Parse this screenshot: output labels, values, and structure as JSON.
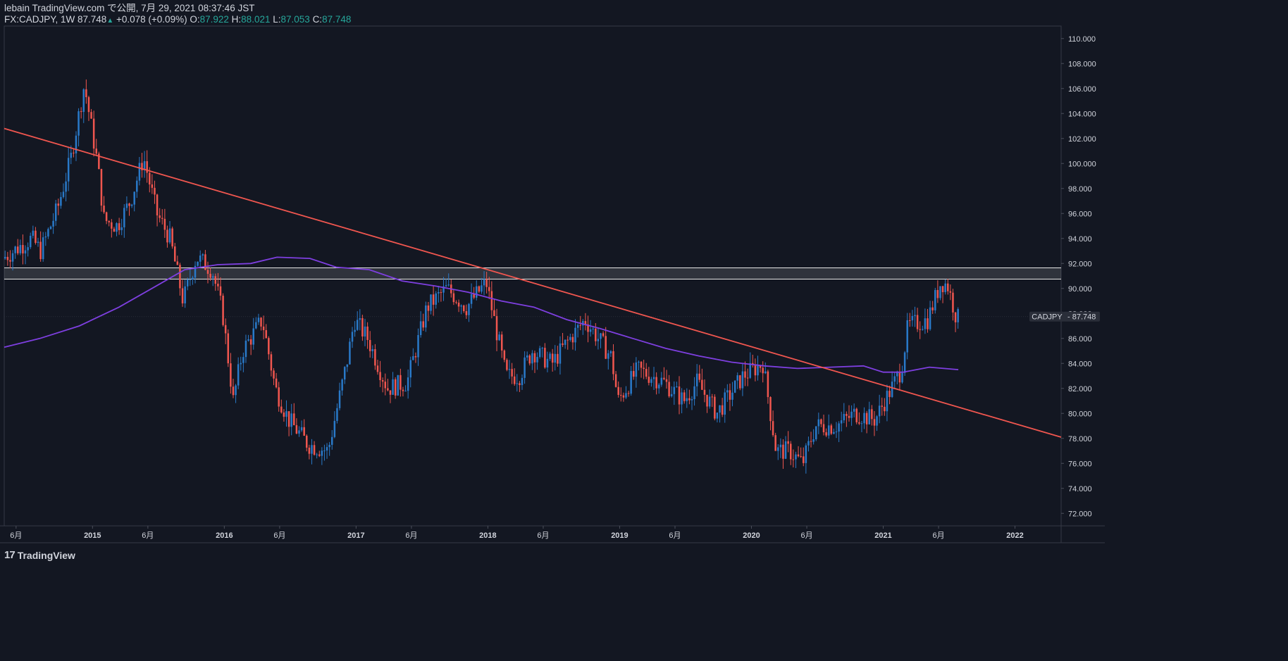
{
  "header": {
    "published": "lebain TradingView.com で公開, 7月 29, 2021 08:37:46 JST",
    "symbol": "FX:CADJPY, 1W 87.748",
    "change_arrow": "▲",
    "change": "+0.078 (+0.09%)",
    "o_label": "O:",
    "o_value": "87.922",
    "h_label": "H:",
    "h_value": "88.021",
    "l_label": "L:",
    "l_value": "87.053",
    "c_label": "C:",
    "c_value": "87.748"
  },
  "footer": {
    "logo_mark": "17",
    "logo_text": "TradingView"
  },
  "chart_data": {
    "type": "candlestick",
    "symbol": "CADJPY",
    "timeframe": "1W",
    "last_price": 87.748,
    "last_price_label": "CADJPY",
    "last_price_text": "87.748",
    "y_range": [
      71.0,
      111.0
    ],
    "x_range": [
      2014.33,
      2022.35
    ],
    "y_ticks": [
      "72.000",
      "74.000",
      "76.000",
      "78.000",
      "80.000",
      "82.000",
      "84.000",
      "86.000",
      "88.000",
      "90.000",
      "92.000",
      "94.000",
      "96.000",
      "98.000",
      "100.000",
      "102.000",
      "104.000",
      "106.000",
      "108.000",
      "110.000"
    ],
    "x_ticks": [
      {
        "label": "6月",
        "t": 2014.42,
        "year": false
      },
      {
        "label": "2015",
        "t": 2015.0,
        "year": true
      },
      {
        "label": "6月",
        "t": 2015.42,
        "year": false
      },
      {
        "label": "2016",
        "t": 2016.0,
        "year": true
      },
      {
        "label": "6月",
        "t": 2016.42,
        "year": false
      },
      {
        "label": "2017",
        "t": 2017.0,
        "year": true
      },
      {
        "label": "6月",
        "t": 2017.42,
        "year": false
      },
      {
        "label": "2018",
        "t": 2018.0,
        "year": true
      },
      {
        "label": "6月",
        "t": 2018.42,
        "year": false
      },
      {
        "label": "2019",
        "t": 2019.0,
        "year": true
      },
      {
        "label": "6月",
        "t": 2019.42,
        "year": false
      },
      {
        "label": "2020",
        "t": 2020.0,
        "year": true
      },
      {
        "label": "6月",
        "t": 2020.42,
        "year": false
      },
      {
        "label": "2021",
        "t": 2021.0,
        "year": true
      },
      {
        "label": "6月",
        "t": 2021.42,
        "year": false
      },
      {
        "label": "2022",
        "t": 2022.0,
        "year": true
      }
    ],
    "price_anchors": [
      [
        2014.33,
        92.4
      ],
      [
        2014.55,
        94.0
      ],
      [
        2014.62,
        93.0
      ],
      [
        2014.75,
        96.5
      ],
      [
        2014.85,
        100.5
      ],
      [
        2014.95,
        106.3
      ],
      [
        2015.05,
        100.0
      ],
      [
        2015.1,
        95.5
      ],
      [
        2015.2,
        95.0
      ],
      [
        2015.3,
        97.0
      ],
      [
        2015.4,
        100.5
      ],
      [
        2015.5,
        96.0
      ],
      [
        2015.6,
        94.0
      ],
      [
        2015.7,
        89.0
      ],
      [
        2015.8,
        92.5
      ],
      [
        2015.92,
        91.5
      ],
      [
        2016.0,
        88.0
      ],
      [
        2016.08,
        81.0
      ],
      [
        2016.15,
        85.0
      ],
      [
        2016.3,
        87.5
      ],
      [
        2016.4,
        82.0
      ],
      [
        2016.5,
        79.5
      ],
      [
        2016.65,
        77.5
      ],
      [
        2016.8,
        77.0
      ],
      [
        2016.95,
        84.5
      ],
      [
        2017.0,
        87.5
      ],
      [
        2017.1,
        86.0
      ],
      [
        2017.25,
        82.0
      ],
      [
        2017.4,
        82.5
      ],
      [
        2017.55,
        88.5
      ],
      [
        2017.7,
        90.0
      ],
      [
        2017.85,
        88.5
      ],
      [
        2018.0,
        90.5
      ],
      [
        2018.15,
        83.0
      ],
      [
        2018.25,
        83.0
      ],
      [
        2018.35,
        85.0
      ],
      [
        2018.5,
        84.0
      ],
      [
        2018.6,
        85.5
      ],
      [
        2018.75,
        87.5
      ],
      [
        2018.95,
        84.5
      ],
      [
        2019.0,
        81.0
      ],
      [
        2019.15,
        83.5
      ],
      [
        2019.35,
        82.5
      ],
      [
        2019.5,
        81.0
      ],
      [
        2019.6,
        82.5
      ],
      [
        2019.75,
        80.0
      ],
      [
        2019.85,
        81.5
      ],
      [
        2019.95,
        83.0
      ],
      [
        2020.1,
        84.0
      ],
      [
        2020.2,
        77.0
      ],
      [
        2020.3,
        77.0
      ],
      [
        2020.4,
        76.0
      ],
      [
        2020.5,
        79.0
      ],
      [
        2020.65,
        79.0
      ],
      [
        2020.8,
        80.0
      ],
      [
        2020.95,
        79.5
      ],
      [
        2021.05,
        81.5
      ],
      [
        2021.15,
        83.5
      ],
      [
        2021.2,
        87.0
      ],
      [
        2021.35,
        87.5
      ],
      [
        2021.45,
        90.5
      ],
      [
        2021.5,
        90.3
      ],
      [
        2021.57,
        87.6
      ]
    ],
    "moving_average": [
      [
        2014.33,
        85.3
      ],
      [
        2014.6,
        86.0
      ],
      [
        2014.9,
        87.0
      ],
      [
        2015.2,
        88.5
      ],
      [
        2015.45,
        90.0
      ],
      [
        2015.7,
        91.5
      ],
      [
        2015.95,
        91.9
      ],
      [
        2016.2,
        92.0
      ],
      [
        2016.4,
        92.5
      ],
      [
        2016.65,
        92.4
      ],
      [
        2016.85,
        91.7
      ],
      [
        2017.1,
        91.5
      ],
      [
        2017.35,
        90.6
      ],
      [
        2017.6,
        90.2
      ],
      [
        2017.85,
        89.7
      ],
      [
        2018.1,
        89.0
      ],
      [
        2018.35,
        88.5
      ],
      [
        2018.6,
        87.5
      ],
      [
        2018.85,
        86.8
      ],
      [
        2019.1,
        86.0
      ],
      [
        2019.35,
        85.2
      ],
      [
        2019.6,
        84.6
      ],
      [
        2019.85,
        84.1
      ],
      [
        2020.1,
        83.8
      ],
      [
        2020.35,
        83.6
      ],
      [
        2020.6,
        83.7
      ],
      [
        2020.85,
        83.8
      ],
      [
        2021.0,
        83.3
      ],
      [
        2021.15,
        83.3
      ],
      [
        2021.35,
        83.7
      ],
      [
        2021.57,
        83.5
      ]
    ],
    "trendline": {
      "from": [
        2014.33,
        102.8
      ],
      "to": [
        2022.35,
        78.1
      ],
      "color": "#f0564f"
    },
    "resistance_zone": {
      "top": 91.65,
      "bottom": 90.75
    },
    "colors": {
      "up": "#2979c8",
      "down": "#f0564f",
      "ma": "#7e3fe0",
      "background": "#131722",
      "grid": "#1e2230",
      "text": "#d1d4dc"
    }
  }
}
